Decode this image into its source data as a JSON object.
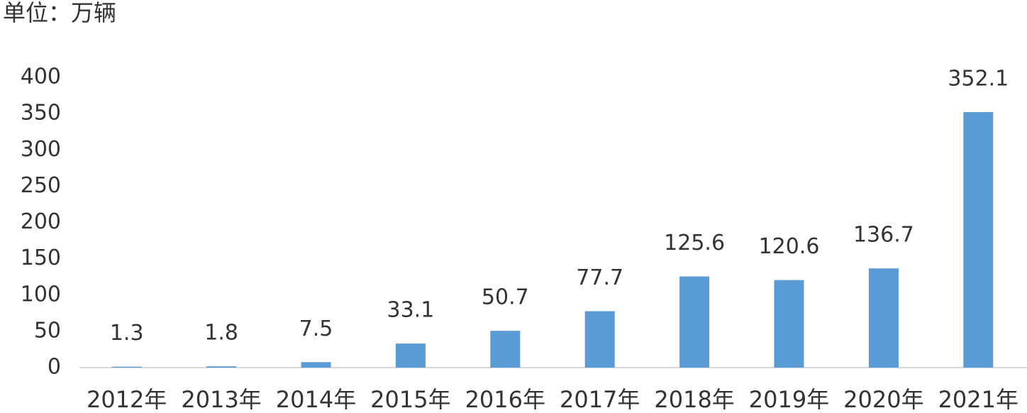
{
  "chart_data": {
    "type": "bar",
    "title": "单位：万辆",
    "categories": [
      "2012年",
      "2013年",
      "2014年",
      "2015年",
      "2016年",
      "2017年",
      "2018年",
      "2019年",
      "2020年",
      "2021年"
    ],
    "values": [
      1.3,
      1.8,
      7.5,
      33.1,
      50.7,
      77.7,
      125.6,
      120.6,
      136.7,
      352.1
    ],
    "color": "#5b9bd5",
    "ylim": [
      0,
      400
    ],
    "yticks": [
      0,
      50,
      100,
      150,
      200,
      250,
      300,
      350,
      400
    ],
    "grid": false
  }
}
